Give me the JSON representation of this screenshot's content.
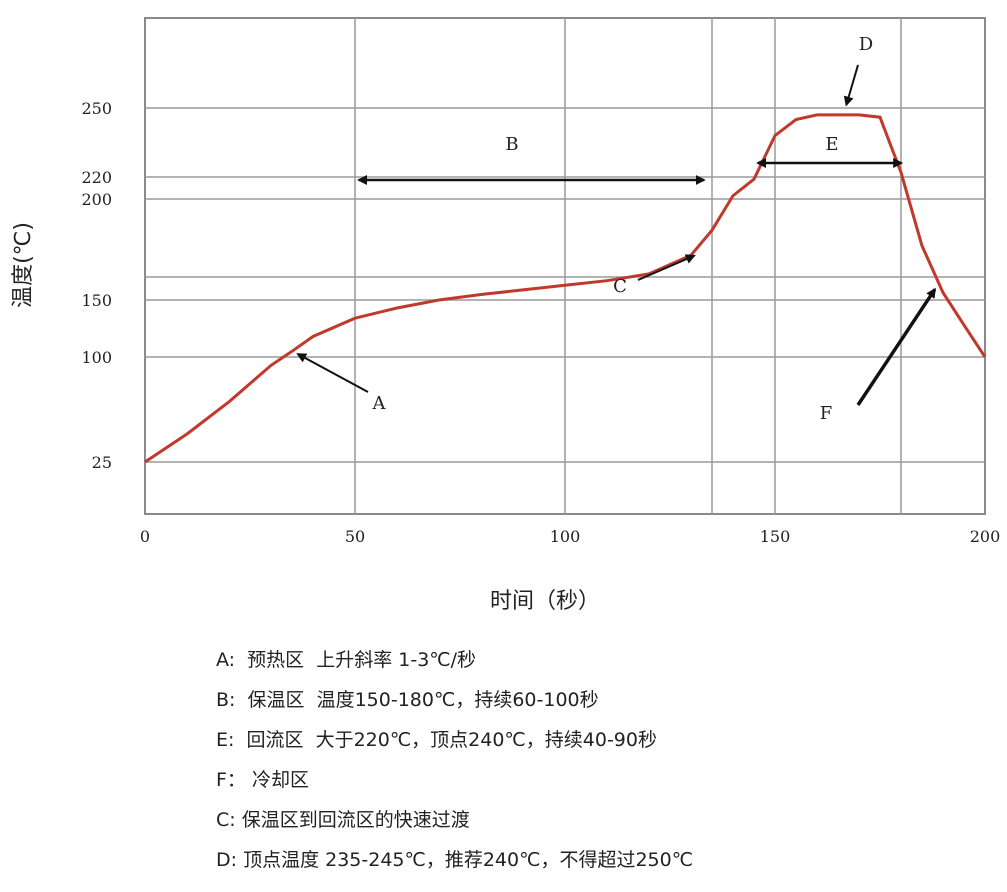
{
  "chart_data": {
    "type": "line",
    "title": "",
    "xlabel": "时间（秒）",
    "ylabel": "温度(℃)",
    "xlim": [
      0,
      200
    ],
    "x_ticks": [
      0,
      50,
      100,
      150,
      200
    ],
    "y_ticks": [
      25,
      100,
      150,
      200,
      220,
      250
    ],
    "y_scale": "piecewise (per tick labels)",
    "grid": true,
    "extra_grid_y_at_approx": 175,
    "extra_grid_x": [
      135,
      180
    ],
    "series": [
      {
        "color": "#c0392b",
        "points": [
          [
            0,
            25
          ],
          [
            10,
            45
          ],
          [
            20,
            68
          ],
          [
            30,
            94
          ],
          [
            35,
            105
          ],
          [
            40,
            118
          ],
          [
            50,
            134
          ],
          [
            60,
            143
          ],
          [
            70,
            150
          ],
          [
            80,
            156
          ],
          [
            90,
            161
          ],
          [
            100,
            166
          ],
          [
            110,
            171
          ],
          [
            120,
            176
          ],
          [
            130,
            182
          ],
          [
            135,
            190
          ],
          [
            140,
            203
          ],
          [
            145,
            218
          ],
          [
            150,
            238
          ],
          [
            155,
            245
          ],
          [
            160,
            247
          ],
          [
            165,
            247
          ],
          [
            170,
            247
          ],
          [
            175,
            246
          ],
          [
            180,
            222
          ],
          [
            185,
            185
          ],
          [
            190,
            158
          ],
          [
            195,
            128
          ],
          [
            200,
            100
          ]
        ]
      }
    ],
    "annotations": [
      {
        "label": "A",
        "target": [
          35,
          106
        ]
      },
      {
        "label": "B",
        "span": [
          50,
          134
        ],
        "y": 220
      },
      {
        "label": "C",
        "target": [
          130,
          185
        ]
      },
      {
        "label": "D",
        "target": [
          167,
          248
        ]
      },
      {
        "label": "E",
        "span": [
          145,
          181
        ],
        "y": 226
      },
      {
        "label": "F",
        "target": [
          189,
          168
        ]
      }
    ]
  },
  "legend_lines": [
    "A:  预热区  上升斜率 1-3℃/秒",
    "B:  保温区  温度150-180℃，持续60-100秒",
    "E:  回流区  大于220℃，顶点240℃，持续40-90秒",
    "F： 冷却区",
    "C: 保温区到回流区的快速过渡",
    "D: 顶点温度 235-245℃，推荐240℃，不得超过250℃"
  ],
  "colors": {
    "curve": "#c0392b",
    "grid": "#9a9a9a",
    "arrow": "#111111",
    "text": "#222222"
  }
}
